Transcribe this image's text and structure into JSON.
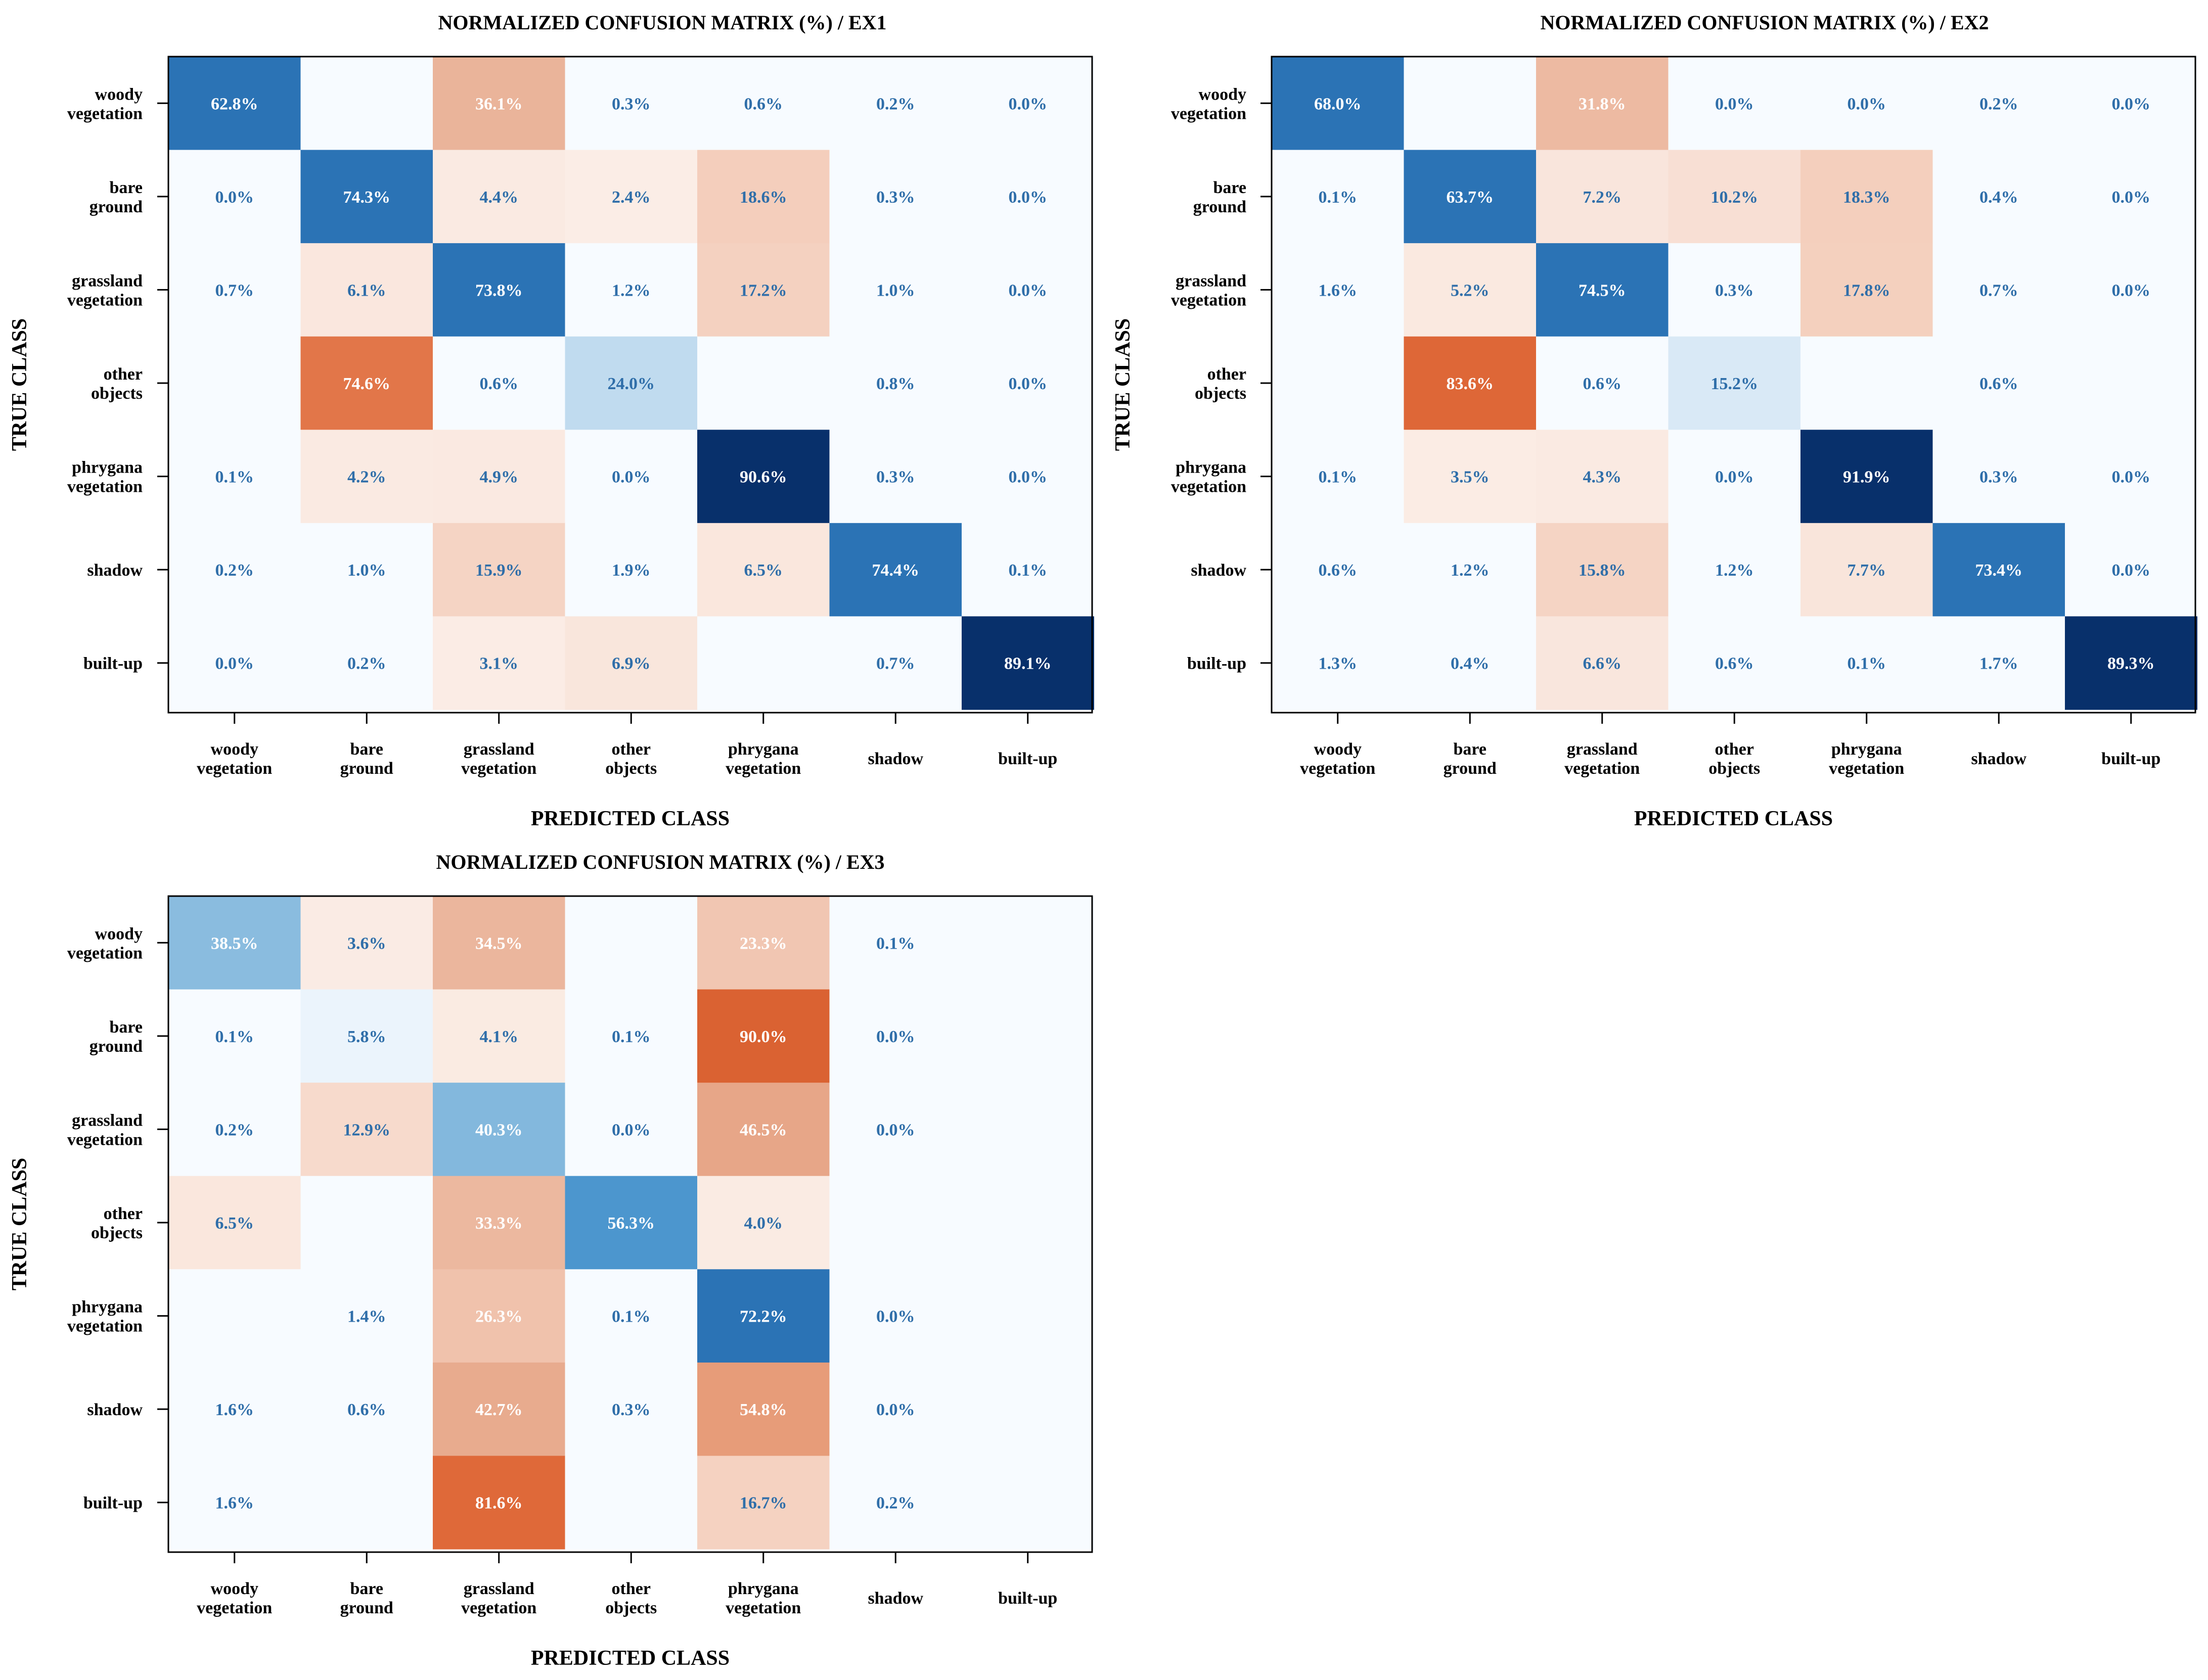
{
  "classes": [
    [
      "woody",
      "vegetation"
    ],
    [
      "bare",
      "ground"
    ],
    [
      "grassland",
      "vegetation"
    ],
    [
      "other",
      "objects"
    ],
    [
      "phrygana",
      "vegetation"
    ],
    [
      "shadow"
    ],
    [
      "built-up"
    ]
  ],
  "colors": {
    "blue_dark": "#08306b",
    "blue": "#2b73b5",
    "orange": "#e06a3a",
    "text_light": "#ffffff",
    "text_dark": "#2f6ea9",
    "frame": "#000000"
  },
  "chart_data": [
    {
      "type": "heatmap",
      "title": "NORMALIZED CONFUSION MATRIX (%)  / EX1",
      "xlabel": "PREDICTED CLASS",
      "ylabel": "TRUE CLASS",
      "rows": [
        [
          "62.8%",
          "",
          "36.1%",
          "0.3%",
          "0.6%",
          "0.2%",
          "0.0%"
        ],
        [
          "0.0%",
          "74.3%",
          "4.4%",
          "2.4%",
          "18.6%",
          "0.3%",
          "0.0%"
        ],
        [
          "0.7%",
          "6.1%",
          "73.8%",
          "1.2%",
          "17.2%",
          "1.0%",
          "0.0%"
        ],
        [
          "",
          "74.6%",
          "0.6%",
          "24.0%",
          "",
          "0.8%",
          "0.0%"
        ],
        [
          "0.1%",
          "4.2%",
          "4.9%",
          "0.0%",
          "90.6%",
          "0.3%",
          "0.0%"
        ],
        [
          "0.2%",
          "1.0%",
          "15.9%",
          "1.9%",
          "6.5%",
          "74.4%",
          "0.1%"
        ],
        [
          "0.0%",
          "0.2%",
          "3.1%",
          "6.9%",
          "",
          "0.7%",
          "89.1%"
        ]
      ]
    },
    {
      "type": "heatmap",
      "title": "NORMALIZED CONFUSION MATRIX (%) / EX2",
      "xlabel": "PREDICTED CLASS",
      "ylabel": "TRUE CLASS",
      "rows": [
        [
          "68.0%",
          "",
          "31.8%",
          "0.0%",
          "0.0%",
          "0.2%",
          "0.0%"
        ],
        [
          "0.1%",
          "63.7%",
          "7.2%",
          "10.2%",
          "18.3%",
          "0.4%",
          "0.0%"
        ],
        [
          "1.6%",
          "5.2%",
          "74.5%",
          "0.3%",
          "17.8%",
          "0.7%",
          "0.0%"
        ],
        [
          "",
          "83.6%",
          "0.6%",
          "15.2%",
          "",
          "0.6%",
          ""
        ],
        [
          "0.1%",
          "3.5%",
          "4.3%",
          "0.0%",
          "91.9%",
          "0.3%",
          "0.0%"
        ],
        [
          "0.6%",
          "1.2%",
          "15.8%",
          "1.2%",
          "7.7%",
          "73.4%",
          "0.0%"
        ],
        [
          "1.3%",
          "0.4%",
          "6.6%",
          "0.6%",
          "0.1%",
          "1.7%",
          "89.3%"
        ]
      ]
    },
    {
      "type": "heatmap",
      "title": "NORMALIZED CONFUSION MATRIX (%) / EX3",
      "xlabel": "PREDICTED CLASS",
      "ylabel": "TRUE CLASS",
      "rows": [
        [
          "38.5%",
          "3.6%",
          "34.5%",
          "",
          "23.3%",
          "0.1%",
          ""
        ],
        [
          "0.1%",
          "5.8%",
          "4.1%",
          "0.1%",
          "90.0%",
          "0.0%",
          ""
        ],
        [
          "0.2%",
          "12.9%",
          "40.3%",
          "0.0%",
          "46.5%",
          "0.0%",
          ""
        ],
        [
          "6.5%",
          "",
          "33.3%",
          "56.3%",
          "4.0%",
          "",
          ""
        ],
        [
          "",
          "1.4%",
          "26.3%",
          "0.1%",
          "72.2%",
          "0.0%",
          ""
        ],
        [
          "1.6%",
          "0.6%",
          "42.7%",
          "0.3%",
          "54.8%",
          "0.0%",
          ""
        ],
        [
          "1.6%",
          "",
          "81.6%",
          "",
          "16.7%",
          "0.2%",
          ""
        ]
      ]
    }
  ]
}
